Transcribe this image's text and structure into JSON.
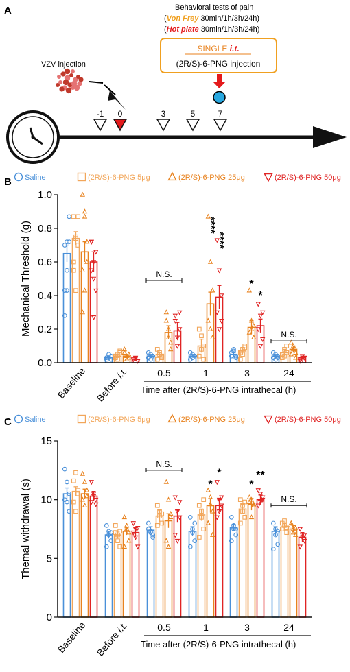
{
  "colors": {
    "saline": "#4a90d9",
    "png5": "#f2a65a",
    "png25": "#e8821e",
    "png50": "#e02424",
    "red_marker": "#e41a1c",
    "blue_dot": "#29a8e0",
    "box_border": "#f0a020",
    "vonfrey": "#f0a020",
    "hotplate": "#e41a1c"
  },
  "panelA": {
    "label": "A",
    "header": "Behavioral tests of pain",
    "vonfrey_name": "Von Frey",
    "vonfrey_times": " 30min/1h/3h/24h)",
    "hotplate_name": "Hot plate",
    "hotplate_times": " 30min/1h/3h/24h)",
    "paren_open": "(",
    "box_single": "SINGLE ",
    "box_it": "i.t.",
    "box_injection": "(2R/S)-6-PNG injection",
    "vzv": "VZV injection",
    "days": [
      "-1",
      "0",
      "3",
      "5",
      "7"
    ],
    "icons": [
      "clock-icon",
      "virus-icon",
      "syringe-icon",
      "down-arrow-icon"
    ]
  },
  "panelB": {
    "label": "B"
  },
  "panelC": {
    "label": "C"
  },
  "legend": [
    {
      "name": "Saline",
      "marker": "circle",
      "color_key": "saline"
    },
    {
      "name": "(2R/S)-6-PNG 5μg",
      "marker": "square",
      "color_key": "png5"
    },
    {
      "name": "(2R/S)-6-PNG 25μg",
      "marker": "triangle-up",
      "color_key": "png25"
    },
    {
      "name": "(2R/S)-6-PNG 50μg",
      "marker": "triangle-down",
      "color_key": "png50"
    }
  ],
  "chart_data": [
    {
      "type": "bar",
      "panel": "B",
      "ylabel": "Mechanical Threshold (g)",
      "xlabel": "Time after (2R/S)-6-PNG  intrathecal  (h)",
      "ylim": [
        0,
        1.0
      ],
      "yticks": [
        "0.0",
        "0.2",
        "0.4",
        "0.6",
        "0.8",
        "1.0"
      ],
      "tickvals": [
        0,
        0.2,
        0.4,
        0.6,
        0.8,
        1.0
      ],
      "categories": [
        "Baseline",
        "Before i.t.",
        "0.5",
        "1",
        "3",
        "24"
      ],
      "series": [
        {
          "name": "Saline",
          "values": [
            0.65,
            0.03,
            0.04,
            0.04,
            0.05,
            0.04
          ],
          "errors": [
            0.05,
            0.01,
            0.01,
            0.01,
            0.01,
            0.01
          ]
        },
        {
          "name": "(2R/S)-6-PNG 5μg",
          "values": [
            0.74,
            0.04,
            0.05,
            0.1,
            0.07,
            0.06
          ],
          "errors": [
            0.04,
            0.01,
            0.01,
            0.04,
            0.02,
            0.02
          ]
        },
        {
          "name": "(2R/S)-6-PNG 25μg",
          "values": [
            0.66,
            0.04,
            0.18,
            0.35,
            0.21,
            0.08
          ],
          "errors": [
            0.06,
            0.01,
            0.04,
            0.07,
            0.04,
            0.02
          ]
        },
        {
          "name": "(2R/S)-6-PNG 50μg",
          "values": [
            0.6,
            0.02,
            0.19,
            0.39,
            0.22,
            0.03
          ],
          "errors": [
            0.06,
            0.01,
            0.05,
            0.07,
            0.04,
            0.01
          ]
        }
      ],
      "points": [
        [
          [
            0.43,
            0.55,
            0.72,
            0.7,
            0.72,
            0.87,
            0.28,
            0.43
          ],
          [
            0.87,
            0.74,
            0.7,
            0.55,
            0.43,
            0.87,
            0.6,
            0.75
          ],
          [
            1.0,
            0.87,
            0.6,
            0.55,
            0.43,
            0.72,
            0.3,
            0.9
          ],
          [
            0.72,
            0.6,
            0.43,
            0.55,
            0.27,
            0.66,
            0.72,
            0.5
          ]
        ],
        [
          [
            0.02,
            0.03,
            0.04,
            0.03,
            0.05,
            0.02
          ],
          [
            0.03,
            0.05,
            0.06,
            0.04,
            0.02,
            0.07
          ],
          [
            0.06,
            0.04,
            0.03,
            0.08,
            0.02,
            0.05
          ],
          [
            0.02,
            0.03,
            0.01,
            0.02,
            0.03,
            0.01
          ]
        ],
        [
          [
            0.03,
            0.05,
            0.04,
            0.06,
            0.02,
            0.04
          ],
          [
            0.02,
            0.06,
            0.04,
            0.08,
            0.05,
            0.03
          ],
          [
            0.3,
            0.15,
            0.08,
            0.25,
            0.2,
            0.12
          ],
          [
            0.25,
            0.1,
            0.2,
            0.28,
            0.15,
            0.3
          ]
        ],
        [
          [
            0.02,
            0.05,
            0.04,
            0.06,
            0.03,
            0.04
          ],
          [
            0.04,
            0.08,
            0.02,
            0.2,
            0.16,
            0.1
          ],
          [
            0.87,
            0.6,
            0.43,
            0.25,
            0.2,
            0.15
          ],
          [
            0.73,
            0.55,
            0.4,
            0.3,
            0.2,
            0.25
          ]
        ],
        [
          [
            0.04,
            0.08,
            0.03,
            0.06,
            0.07,
            0.04
          ],
          [
            0.02,
            0.08,
            0.1,
            0.06,
            0.05,
            0.09
          ],
          [
            0.43,
            0.2,
            0.15,
            0.18,
            0.25,
            0.22
          ],
          [
            0.35,
            0.28,
            0.14,
            0.2,
            0.1,
            0.3
          ]
        ],
        [
          [
            0.03,
            0.05,
            0.04,
            0.06,
            0.02,
            0.03
          ],
          [
            0.03,
            0.08,
            0.1,
            0.05,
            0.04,
            0.06
          ],
          [
            0.05,
            0.1,
            0.06,
            0.12,
            0.08,
            0.03
          ],
          [
            0.02,
            0.04,
            0.03,
            0.01,
            0.02,
            0.03
          ]
        ]
      ],
      "annotations": [
        {
          "text": "****",
          "group": "1",
          "series": 2,
          "y": 0.87,
          "vertical": true
        },
        {
          "text": "****",
          "group": "1",
          "series": 3,
          "y": 0.78,
          "vertical": true
        },
        {
          "text": "*",
          "group": "3",
          "series": 2,
          "y": 0.45
        },
        {
          "text": "*",
          "group": "3",
          "series": 3,
          "y": 0.38
        }
      ],
      "ns": [
        {
          "text": "N.S.",
          "group": "0.5",
          "y": 0.49
        },
        {
          "text": "N.S.",
          "group": "24",
          "y": 0.13
        }
      ]
    },
    {
      "type": "bar",
      "panel": "C",
      "ylabel": "Themal withdrawal (s)",
      "xlabel": "Time after (2R/S)-6-PNG  intrathecal  (h)",
      "ylim": [
        0,
        15
      ],
      "yticks": [
        "0",
        "5",
        "10",
        "15"
      ],
      "tickvals": [
        0,
        5,
        10,
        15
      ],
      "categories": [
        "Baseline",
        "Before i.t.",
        "0.5",
        "1",
        "3",
        "24"
      ],
      "series": [
        {
          "name": "Saline",
          "values": [
            10.5,
            7.0,
            7.4,
            7.3,
            7.6,
            7.3
          ],
          "errors": [
            0.5,
            0.3,
            0.3,
            0.4,
            0.3,
            0.4
          ]
        },
        {
          "name": "(2R/S)-6-PNG 5μg",
          "values": [
            10.7,
            7.0,
            8.6,
            8.7,
            9.2,
            7.7
          ],
          "errors": [
            0.4,
            0.3,
            0.5,
            0.5,
            0.4,
            0.3
          ]
        },
        {
          "name": "(2R/S)-6-PNG 25μg",
          "values": [
            10.5,
            7.3,
            8.2,
            9.5,
            9.6,
            7.5
          ],
          "errors": [
            0.4,
            0.3,
            0.6,
            0.6,
            0.5,
            0.3
          ]
        },
        {
          "name": "(2R/S)-6-PNG 50μg",
          "values": [
            10.3,
            7.2,
            8.6,
            9.5,
            10.0,
            6.8
          ],
          "errors": [
            0.4,
            0.4,
            0.5,
            0.5,
            0.4,
            0.4
          ]
        }
      ],
      "points": [
        [
          [
            12.6,
            11.5,
            10.5,
            10.0,
            9.8,
            9.0
          ],
          [
            11.6,
            12.3,
            10.5,
            9.8,
            9.0,
            10.8
          ],
          [
            12.2,
            11.5,
            10.8,
            10.0,
            9.5,
            10.3
          ],
          [
            11.5,
            10.5,
            10.0,
            9.8,
            10.3,
            9.6
          ]
        ],
        [
          [
            7.8,
            7.3,
            6.5,
            6.0,
            7.0,
            7.2
          ],
          [
            7.8,
            7.0,
            6.0,
            7.2,
            6.5,
            7.3
          ],
          [
            8.5,
            7.5,
            6.5,
            6.0,
            7.8,
            7.2
          ],
          [
            8.0,
            7.5,
            6.0,
            7.2,
            6.8,
            7.6
          ]
        ],
        [
          [
            8.0,
            7.2,
            6.8,
            7.5,
            7.3,
            7.0
          ],
          [
            9.5,
            8.6,
            8.0,
            7.8,
            9.0,
            8.8
          ],
          [
            11.5,
            10.0,
            8.5,
            6.5,
            6.0,
            8.8
          ],
          [
            10.2,
            9.0,
            8.5,
            7.0,
            6.5,
            9.8
          ]
        ],
        [
          [
            8.5,
            7.5,
            6.5,
            6.0,
            7.2,
            8.0
          ],
          [
            9.5,
            8.5,
            7.5,
            6.8,
            9.0,
            10.0
          ],
          [
            10.8,
            9.6,
            9.0,
            8.0,
            10.2,
            7.0
          ],
          [
            11.5,
            10.0,
            9.5,
            8.5,
            9.0,
            10.2
          ]
        ],
        [
          [
            8.5,
            7.5,
            7.0,
            6.5,
            7.8,
            7.5
          ],
          [
            10.0,
            9.5,
            8.5,
            8.0,
            9.0,
            9.8
          ],
          [
            10.2,
            10.0,
            9.5,
            9.8,
            8.5,
            9.6
          ],
          [
            10.8,
            10.5,
            10.0,
            9.5,
            9.8,
            10.2
          ]
        ],
        [
          [
            8.0,
            7.0,
            6.2,
            5.8,
            7.5,
            7.3
          ],
          [
            8.0,
            7.8,
            7.2,
            7.5,
            8.2,
            7.6
          ],
          [
            8.0,
            7.5,
            7.0,
            7.8,
            7.2,
            7.6
          ],
          [
            7.5,
            7.0,
            6.5,
            6.0,
            6.8,
            7.0
          ]
        ]
      ],
      "annotations": [
        {
          "text": "*",
          "group": "1",
          "series": 2,
          "y": 11.0
        },
        {
          "text": "*",
          "group": "1",
          "series": 3,
          "y": 12.0
        },
        {
          "text": "*",
          "group": "3",
          "series": 2,
          "y": 11.0
        },
        {
          "text": "**",
          "group": "3",
          "series": 3,
          "y": 11.8
        }
      ],
      "ns": [
        {
          "text": "N.S.",
          "group": "0.5",
          "y": 12.5
        },
        {
          "text": "N.S.",
          "group": "24",
          "y": 9.5
        }
      ]
    }
  ]
}
